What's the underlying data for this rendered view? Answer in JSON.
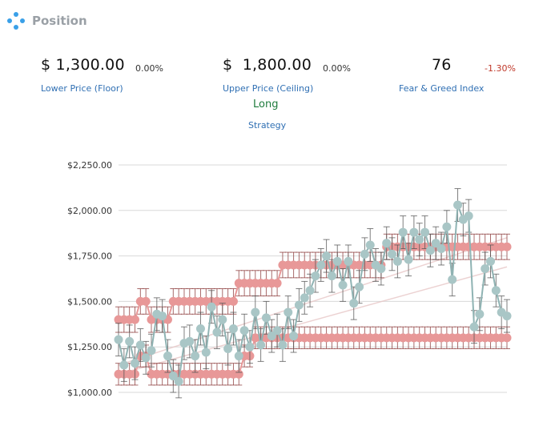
{
  "header": {
    "title": "Position",
    "icon": "network-dots-icon"
  },
  "stats": {
    "floor": {
      "value": "$ 1,300.00",
      "change": "0.00%",
      "label": "Lower Price (Floor)"
    },
    "ceiling": {
      "value": "$  1,800.00",
      "change": "0.00%",
      "label": "Upper Price (Ceiling)"
    },
    "fear_greed": {
      "value": "76",
      "change": "-1.30%",
      "label": "Fear & Greed Index"
    },
    "strategy": {
      "value": "Long",
      "label": "Strategy"
    }
  },
  "colors": {
    "accent_text": "#2f6fb3",
    "negative": "#c0392b",
    "positive_strategy": "#1e7b3c",
    "bounds_series": "#e89898",
    "bounds_line": "#8b3a3a",
    "price_series": "#a9c6c6",
    "price_line": "#8fb3b3"
  },
  "chart_data": {
    "type": "line",
    "title": "",
    "xlabel": "",
    "ylabel": "",
    "ylim": [
      1000,
      2250
    ],
    "y_ticks": [
      1000,
      1250,
      1500,
      1750,
      2000,
      2250
    ],
    "y_tick_labels": [
      "$1,000.00",
      "$1,250.00",
      "$1,500.00",
      "$1,750.00",
      "$2,000.00",
      "$2,250.00"
    ],
    "grid": true,
    "legend": "none",
    "x": [
      1,
      2,
      3,
      4,
      5,
      6,
      7,
      8,
      9,
      10,
      11,
      12,
      13,
      14,
      15,
      16,
      17,
      18,
      19,
      20,
      21,
      22,
      23,
      24,
      25,
      26,
      27,
      28,
      29,
      30,
      31,
      32,
      33,
      34,
      35,
      36,
      37,
      38,
      39,
      40,
      41,
      42,
      43,
      44,
      45,
      46,
      47,
      48,
      49,
      50,
      51,
      52,
      53,
      54,
      55,
      56,
      57,
      58,
      59,
      60,
      61,
      62,
      63,
      64,
      65,
      66,
      67,
      68,
      69,
      70,
      71,
      72
    ],
    "series": [
      {
        "role": "floor",
        "values": [
          1100,
          1100,
          1100,
          1100,
          1200,
          1200,
          1100,
          1100,
          1100,
          1100,
          1100,
          1100,
          1100,
          1100,
          1100,
          1100,
          1100,
          1100,
          1100,
          1100,
          1100,
          1100,
          1100,
          1200,
          1200,
          1300,
          1300,
          1300,
          1300,
          1300,
          1300,
          1300,
          1300,
          1300,
          1300,
          1300,
          1300,
          1300,
          1300,
          1300,
          1300,
          1300,
          1300,
          1300,
          1300,
          1300,
          1300,
          1300,
          1300,
          1300,
          1300,
          1300,
          1300,
          1300,
          1300,
          1300,
          1300,
          1300,
          1300,
          1300,
          1300,
          1300,
          1300,
          1300,
          1300,
          1300,
          1300,
          1300,
          1300,
          1300,
          1300,
          1300
        ],
        "error": 60
      },
      {
        "role": "ceiling",
        "values": [
          1400,
          1400,
          1400,
          1400,
          1500,
          1500,
          1400,
          1400,
          1400,
          1400,
          1500,
          1500,
          1500,
          1500,
          1500,
          1500,
          1500,
          1500,
          1500,
          1500,
          1500,
          1500,
          1600,
          1600,
          1600,
          1600,
          1600,
          1600,
          1600,
          1600,
          1700,
          1700,
          1700,
          1700,
          1700,
          1700,
          1700,
          1700,
          1700,
          1700,
          1700,
          1700,
          1700,
          1700,
          1700,
          1700,
          1700,
          1700,
          1700,
          1800,
          1800,
          1800,
          1800,
          1800,
          1800,
          1800,
          1800,
          1800,
          1800,
          1800,
          1800,
          1800,
          1800,
          1800,
          1800,
          1800,
          1800,
          1800,
          1800,
          1800,
          1800,
          1800
        ],
        "error": 70
      },
      {
        "role": "price",
        "values": [
          1290,
          1150,
          1280,
          1160,
          1260,
          1190,
          1230,
          1430,
          1420,
          1200,
          1090,
          1060,
          1270,
          1280,
          1200,
          1350,
          1220,
          1470,
          1330,
          1400,
          1240,
          1350,
          1200,
          1340,
          1250,
          1440,
          1260,
          1410,
          1310,
          1340,
          1260,
          1440,
          1310,
          1480,
          1520,
          1560,
          1640,
          1700,
          1750,
          1640,
          1720,
          1590,
          1720,
          1490,
          1580,
          1760,
          1810,
          1700,
          1680,
          1820,
          1760,
          1720,
          1880,
          1730,
          1880,
          1840,
          1880,
          1780,
          1820,
          1790,
          1910,
          1620,
          2030,
          1950,
          1970,
          1360,
          1430,
          1680,
          1720,
          1560,
          1440,
          1420
        ],
        "error": 90
      }
    ],
    "trend_lines": [
      {
        "from": [
          1,
          1100
        ],
        "to": [
          72,
          1690
        ]
      },
      {
        "from": [
          1,
          1150
        ],
        "to": [
          72,
          1850
        ]
      }
    ]
  }
}
